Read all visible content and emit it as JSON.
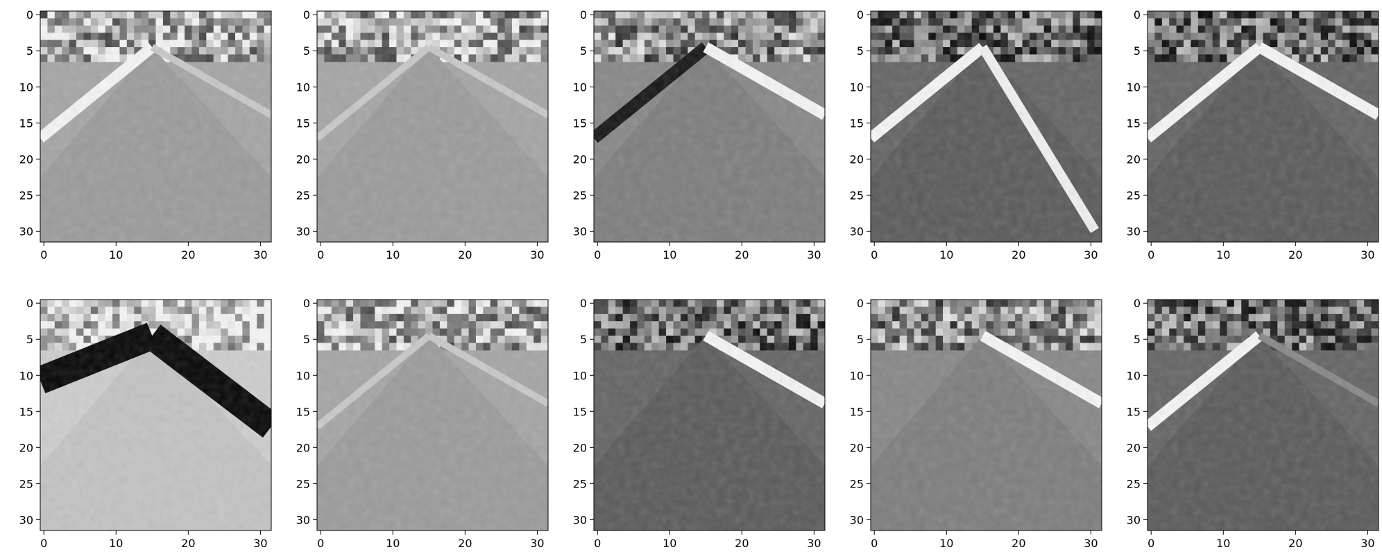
{
  "figure": {
    "background": "#ffffff",
    "axis_color": "#000000",
    "colormap": "gray",
    "grid": [
      2,
      5
    ],
    "axis_ranges": {
      "x": [
        -0.5,
        31.5
      ],
      "y": [
        31.5,
        -0.5
      ]
    },
    "x_tick_labels": [
      "0",
      "10",
      "20",
      "30"
    ],
    "y_tick_labels": [
      "0",
      "5",
      "10",
      "15",
      "20",
      "25",
      "30"
    ]
  },
  "panels": [
    {
      "left_line": "bright",
      "right_line": "faint",
      "road_tone": "light"
    },
    {
      "left_line": "faint",
      "right_line": "faint",
      "road_tone": "light"
    },
    {
      "left_line": "dark",
      "right_line": "bright",
      "road_tone": "medium"
    },
    {
      "left_line": "bright",
      "right_line": "bright-inner",
      "road_tone": "dark"
    },
    {
      "left_line": "bright",
      "right_line": "bright",
      "road_tone": "dark"
    },
    {
      "left_line": "dark-wide",
      "right_line": "dark-wide",
      "road_tone": "very-light"
    },
    {
      "left_line": "faint",
      "right_line": "faint",
      "road_tone": "light"
    },
    {
      "left_line": "none",
      "right_line": "bright",
      "road_tone": "dark"
    },
    {
      "left_line": "none",
      "right_line": "bright",
      "road_tone": "medium"
    },
    {
      "left_line": "bright",
      "right_line": "faint",
      "road_tone": "dark"
    }
  ]
}
